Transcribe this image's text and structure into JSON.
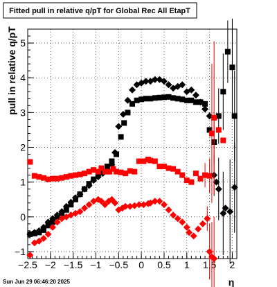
{
  "page": {
    "timestamp": "Sun Jun 29 06:46:20 2025"
  },
  "chart_data": {
    "type": "scatter",
    "title": "Fitted pull in relative q/pT for Global Rec All EtapT",
    "xlabel": "η",
    "ylabel": "pull in relative q/pT",
    "xlim": [
      -2.5,
      2.1
    ],
    "ylim": [
      -1.2,
      5.4
    ],
    "grid": true,
    "xticks": [
      -2.5,
      -2,
      -1.5,
      -1,
      -0.5,
      0,
      0.5,
      1,
      1.5,
      2
    ],
    "xtick_labels": [
      "−2.5",
      "−2",
      "−1.5",
      "−1",
      "−0.5",
      "0",
      "0.5",
      "1",
      "1.5",
      "2"
    ],
    "yticks": [
      -1,
      0,
      1,
      2,
      3,
      4,
      5
    ],
    "ytick_labels": [
      "−1",
      "0",
      "1",
      "2",
      "3",
      "4",
      "5"
    ],
    "colors": {
      "black": "#000000",
      "red": "#ff0000"
    },
    "series": [
      {
        "color": "#000000",
        "marker": "square",
        "points": [
          [
            -2.45,
            -0.5
          ],
          [
            -2.35,
            -0.48
          ],
          [
            -2.25,
            -0.45
          ],
          [
            -2.15,
            -0.38
          ],
          [
            -2.05,
            -0.25
          ],
          [
            -1.95,
            -0.15
          ],
          [
            -1.85,
            0.0
          ],
          [
            -1.75,
            0.1
          ],
          [
            -1.65,
            0.2
          ],
          [
            -1.55,
            0.35
          ],
          [
            -1.45,
            0.5
          ],
          [
            -1.35,
            0.65
          ],
          [
            -1.25,
            0.8
          ],
          [
            -1.15,
            0.95
          ],
          [
            -1.05,
            1.08
          ],
          [
            -0.95,
            1.2
          ],
          [
            -0.85,
            1.3
          ],
          [
            -0.75,
            1.45
          ],
          [
            -0.65,
            1.6
          ],
          [
            -0.55,
            1.8
          ],
          [
            -0.45,
            2.3
          ],
          [
            -0.38,
            2.7
          ],
          [
            -0.3,
            3.0
          ],
          [
            -0.2,
            3.25
          ],
          [
            -0.1,
            3.35
          ],
          [
            0.0,
            3.38
          ],
          [
            0.1,
            3.4
          ],
          [
            0.2,
            3.4
          ],
          [
            0.3,
            3.42
          ],
          [
            0.4,
            3.43
          ],
          [
            0.5,
            3.44
          ],
          [
            0.6,
            3.45
          ],
          [
            0.7,
            3.42
          ],
          [
            0.8,
            3.4
          ],
          [
            0.9,
            3.38
          ],
          [
            1.0,
            3.35
          ],
          [
            1.1,
            3.35
          ],
          [
            1.2,
            3.3
          ],
          [
            1.3,
            3.3
          ],
          [
            1.4,
            3.25
          ],
          [
            1.5,
            2.5
          ],
          [
            1.6,
            2.15
          ],
          [
            1.7,
            2.9
          ],
          [
            1.8,
            3.6
          ],
          [
            1.9,
            4.75
          ],
          [
            2.0,
            4.3
          ],
          [
            2.05,
            2.9
          ]
        ],
        "errors": [
          [
            1.6,
            0.6
          ],
          [
            1.7,
            0.8
          ],
          [
            1.8,
            1.1
          ],
          [
            1.9,
            0.9
          ],
          [
            2.0,
            1.4
          ],
          [
            2.05,
            1.3
          ]
        ]
      },
      {
        "color": "#000000",
        "marker": "diamond",
        "points": [
          [
            -2.45,
            -0.5
          ],
          [
            -2.35,
            -0.45
          ],
          [
            -2.25,
            -0.4
          ],
          [
            -2.15,
            -0.3
          ],
          [
            -2.05,
            -0.15
          ],
          [
            -1.95,
            -0.05
          ],
          [
            -1.85,
            0.05
          ],
          [
            -1.75,
            0.15
          ],
          [
            -1.65,
            0.3
          ],
          [
            -1.55,
            0.42
          ],
          [
            -1.45,
            0.55
          ],
          [
            -1.35,
            0.65
          ],
          [
            -1.25,
            0.8
          ],
          [
            -1.15,
            0.9
          ],
          [
            -1.05,
            1.05
          ],
          [
            -0.95,
            1.15
          ],
          [
            -0.85,
            1.25
          ],
          [
            -0.75,
            1.35
          ],
          [
            -0.65,
            1.5
          ],
          [
            -0.58,
            1.85
          ],
          [
            -0.5,
            2.6
          ],
          [
            -0.4,
            2.95
          ],
          [
            -0.3,
            3.35
          ],
          [
            -0.2,
            3.65
          ],
          [
            -0.1,
            3.8
          ],
          [
            0.0,
            3.85
          ],
          [
            0.1,
            3.9
          ],
          [
            0.2,
            3.9
          ],
          [
            0.3,
            3.95
          ],
          [
            0.4,
            3.95
          ],
          [
            0.5,
            3.9
          ],
          [
            0.6,
            3.8
          ],
          [
            0.7,
            3.7
          ],
          [
            0.8,
            3.75
          ],
          [
            0.9,
            3.8
          ],
          [
            1.0,
            3.6
          ],
          [
            1.1,
            3.65
          ],
          [
            1.2,
            3.5
          ],
          [
            1.3,
            3.3
          ],
          [
            1.4,
            3.1
          ],
          [
            1.5,
            2.9
          ],
          [
            1.6,
            1.2
          ],
          [
            1.65,
            1.0
          ],
          [
            1.7,
            0.8
          ],
          [
            1.8,
            0.1
          ],
          [
            1.85,
            0.25
          ],
          [
            1.95,
            0.15
          ],
          [
            2.05,
            0.85
          ]
        ],
        "errors": [
          [
            1.6,
            0.6
          ],
          [
            1.7,
            0.9
          ],
          [
            1.8,
            1.2
          ],
          [
            1.95,
            1.5
          ],
          [
            2.05,
            1.3
          ]
        ]
      },
      {
        "color": "#ff0000",
        "marker": "square",
        "points": [
          [
            -2.45,
            1.58
          ],
          [
            -2.35,
            1.18
          ],
          [
            -2.25,
            1.15
          ],
          [
            -2.15,
            1.12
          ],
          [
            -2.05,
            1.08
          ],
          [
            -1.95,
            1.1
          ],
          [
            -1.85,
            1.1
          ],
          [
            -1.75,
            1.12
          ],
          [
            -1.65,
            1.15
          ],
          [
            -1.55,
            1.18
          ],
          [
            -1.45,
            1.2
          ],
          [
            -1.35,
            1.22
          ],
          [
            -1.25,
            1.25
          ],
          [
            -1.15,
            1.3
          ],
          [
            -1.05,
            1.35
          ],
          [
            -0.95,
            1.3
          ],
          [
            -0.88,
            1.4
          ],
          [
            -0.8,
            1.3
          ],
          [
            -0.7,
            1.3
          ],
          [
            -0.62,
            1.38
          ],
          [
            -0.55,
            1.3
          ],
          [
            -0.45,
            1.28
          ],
          [
            -0.35,
            1.25
          ],
          [
            -0.25,
            1.32
          ],
          [
            -0.15,
            1.3
          ],
          [
            -0.05,
            1.6
          ],
          [
            0.05,
            1.6
          ],
          [
            0.15,
            1.65
          ],
          [
            0.2,
            1.62
          ],
          [
            0.3,
            1.6
          ],
          [
            0.4,
            1.45
          ],
          [
            0.5,
            1.45
          ],
          [
            0.6,
            1.4
          ],
          [
            0.7,
            1.38
          ],
          [
            0.8,
            1.3
          ],
          [
            0.9,
            1.2
          ],
          [
            1.0,
            1.05
          ],
          [
            1.1,
            1.0
          ],
          [
            1.2,
            1.25
          ],
          [
            1.3,
            1.1
          ],
          [
            1.4,
            1.2
          ],
          [
            1.5,
            1.18
          ],
          [
            1.55,
            2.4
          ],
          [
            1.6,
            2.85
          ],
          [
            1.7,
            2.5
          ],
          [
            1.8,
            2.2
          ]
        ],
        "errors": [
          [
            1.4,
            0.35
          ],
          [
            1.5,
            0.5
          ],
          [
            1.55,
            2.0
          ],
          [
            1.6,
            2.2
          ]
        ]
      },
      {
        "color": "#ff0000",
        "marker": "diamond",
        "points": [
          [
            -2.45,
            -1.1
          ],
          [
            -2.35,
            -0.75
          ],
          [
            -2.25,
            -0.7
          ],
          [
            -2.15,
            -0.62
          ],
          [
            -2.05,
            -0.5
          ],
          [
            -1.95,
            -0.3
          ],
          [
            -1.85,
            -0.15
          ],
          [
            -1.75,
            -0.05
          ],
          [
            -1.65,
            0.0
          ],
          [
            -1.55,
            0.05
          ],
          [
            -1.45,
            0.1
          ],
          [
            -1.35,
            0.15
          ],
          [
            -1.25,
            0.25
          ],
          [
            -1.15,
            0.35
          ],
          [
            -1.05,
            0.45
          ],
          [
            -0.95,
            0.5
          ],
          [
            -0.88,
            0.45
          ],
          [
            -0.8,
            0.35
          ],
          [
            -0.72,
            0.45
          ],
          [
            -0.65,
            0.5
          ],
          [
            -0.58,
            0.4
          ],
          [
            -0.5,
            0.2
          ],
          [
            -0.42,
            0.25
          ],
          [
            -0.35,
            0.3
          ],
          [
            -0.25,
            0.3
          ],
          [
            -0.15,
            0.32
          ],
          [
            -0.05,
            0.35
          ],
          [
            0.05,
            0.35
          ],
          [
            0.15,
            0.38
          ],
          [
            0.2,
            0.4
          ],
          [
            0.3,
            0.45
          ],
          [
            0.4,
            0.45
          ],
          [
            0.5,
            0.35
          ],
          [
            0.6,
            0.2
          ],
          [
            0.7,
            0.05
          ],
          [
            0.8,
            -0.05
          ],
          [
            0.9,
            -0.15
          ],
          [
            1.0,
            -0.3
          ],
          [
            1.05,
            -0.45
          ],
          [
            1.15,
            -0.55
          ],
          [
            1.25,
            -0.35
          ],
          [
            1.35,
            -0.2
          ],
          [
            1.45,
            -0.05
          ],
          [
            1.5,
            -1.0
          ],
          [
            1.55,
            -1.15
          ],
          [
            1.6,
            -1.2
          ]
        ],
        "errors": [
          [
            1.45,
            0.35
          ],
          [
            1.5,
            0.8
          ],
          [
            1.55,
            1.0
          ],
          [
            1.6,
            1.2
          ]
        ]
      }
    ]
  }
}
